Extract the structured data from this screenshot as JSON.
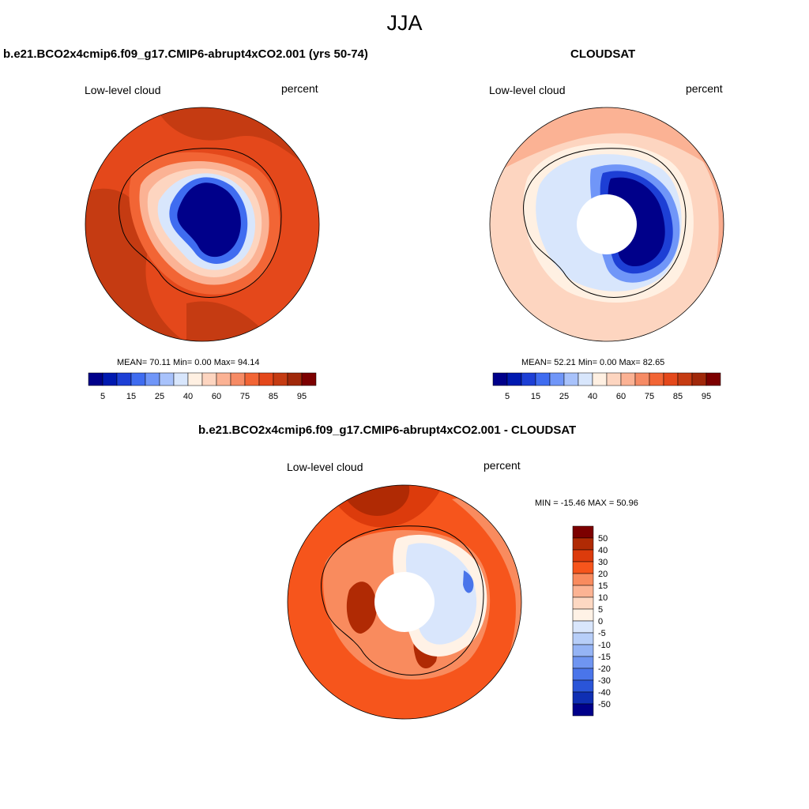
{
  "figure": {
    "season": "JJA"
  },
  "panels": {
    "model": {
      "title": "b.e21.BCO2x4cmip6.f09_g17.CMIP6-abrupt4xCO2.001 (yrs 50-74)",
      "variable": "Low-level cloud",
      "units": "percent",
      "stats": "MEAN=  70.11  Min=   0.00  Max=  94.14"
    },
    "obs": {
      "title": "CLOUDSAT",
      "variable": "Low-level cloud",
      "units": "percent",
      "stats": "MEAN=  52.21  Min=   0.00  Max=  82.65"
    },
    "diff": {
      "title": "b.e21.BCO2x4cmip6.f09_g17.CMIP6-abrupt4xCO2.001 - CLOUDSAT",
      "variable": "Low-level cloud",
      "units": "percent",
      "stats": "MIN = -15.46 MAX =  50.96"
    }
  },
  "colorbars": {
    "abs": {
      "colors": [
        "#00008a",
        "#0019b0",
        "#1d3fd5",
        "#3f6cf0",
        "#7096f8",
        "#a8c2fb",
        "#d8e6fc",
        "#fff0e2",
        "#fdd5c0",
        "#fbb294",
        "#f68b65",
        "#f26535",
        "#e4481b",
        "#c53b12",
        "#a0280a",
        "#7c0000"
      ],
      "labels": [
        "5",
        "15",
        "25",
        "40",
        "60",
        "75",
        "85",
        "95"
      ]
    },
    "diff": {
      "colors": [
        "#7c0000",
        "#b02a04",
        "#dc3b0c",
        "#f6551c",
        "#f98b5e",
        "#fcb393",
        "#fdd8c2",
        "#fff2e6",
        "#d9e6fc",
        "#b7cef8",
        "#95b4f5",
        "#6f95f1",
        "#4a75ea",
        "#2a55d8",
        "#0f2fb3",
        "#00008a"
      ],
      "labels": [
        "50",
        "40",
        "30",
        "20",
        "15",
        "10",
        "5",
        "0",
        "-5",
        "-10",
        "-15",
        "-20",
        "-30",
        "-40",
        "-50"
      ]
    }
  },
  "colors": {
    "land_outline": "#000000",
    "missing": "#ffffff"
  }
}
